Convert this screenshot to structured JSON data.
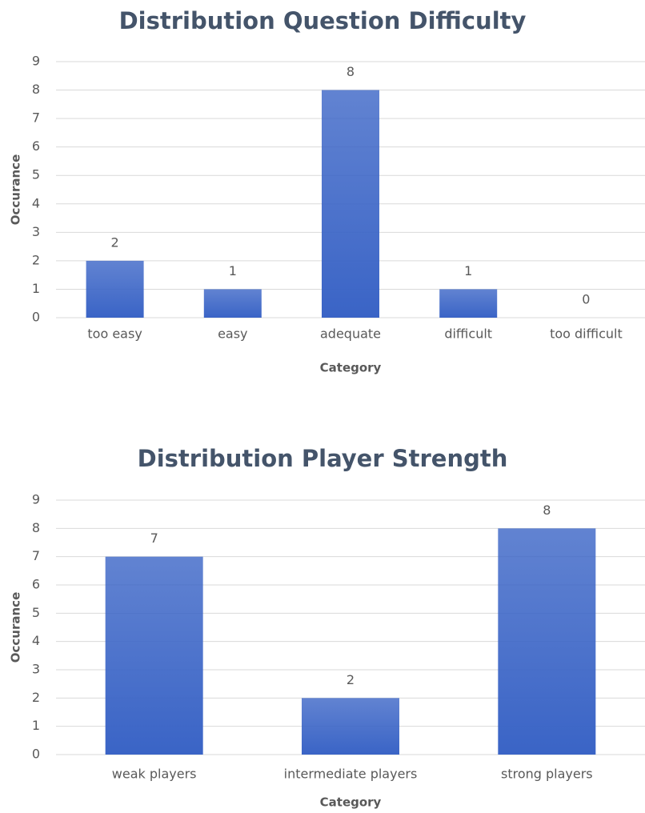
{
  "chart_data": [
    {
      "type": "bar",
      "title": "Distribution Question Difficulty",
      "x_label": "Category",
      "y_label": "Occurance",
      "categories": [
        "too easy",
        "easy",
        "adequate",
        "difficult",
        "too difficult"
      ],
      "values": [
        2,
        1,
        8,
        1,
        0
      ],
      "color": "#3a64c6",
      "ylim": [
        0,
        9
      ],
      "yticks": [
        0,
        1,
        2,
        3,
        4,
        5,
        6,
        7,
        8,
        9
      ],
      "grid": true
    },
    {
      "type": "bar",
      "title": "Distribution Player Strength",
      "x_label": "Category",
      "y_label": "Occurance",
      "categories": [
        "weak players",
        "intermediate players",
        "strong players"
      ],
      "values": [
        7,
        2,
        8
      ],
      "color": "#3a64c6",
      "ylim": [
        0,
        9
      ],
      "yticks": [
        0,
        1,
        2,
        3,
        4,
        5,
        6,
        7,
        8,
        9
      ],
      "grid": true
    }
  ]
}
